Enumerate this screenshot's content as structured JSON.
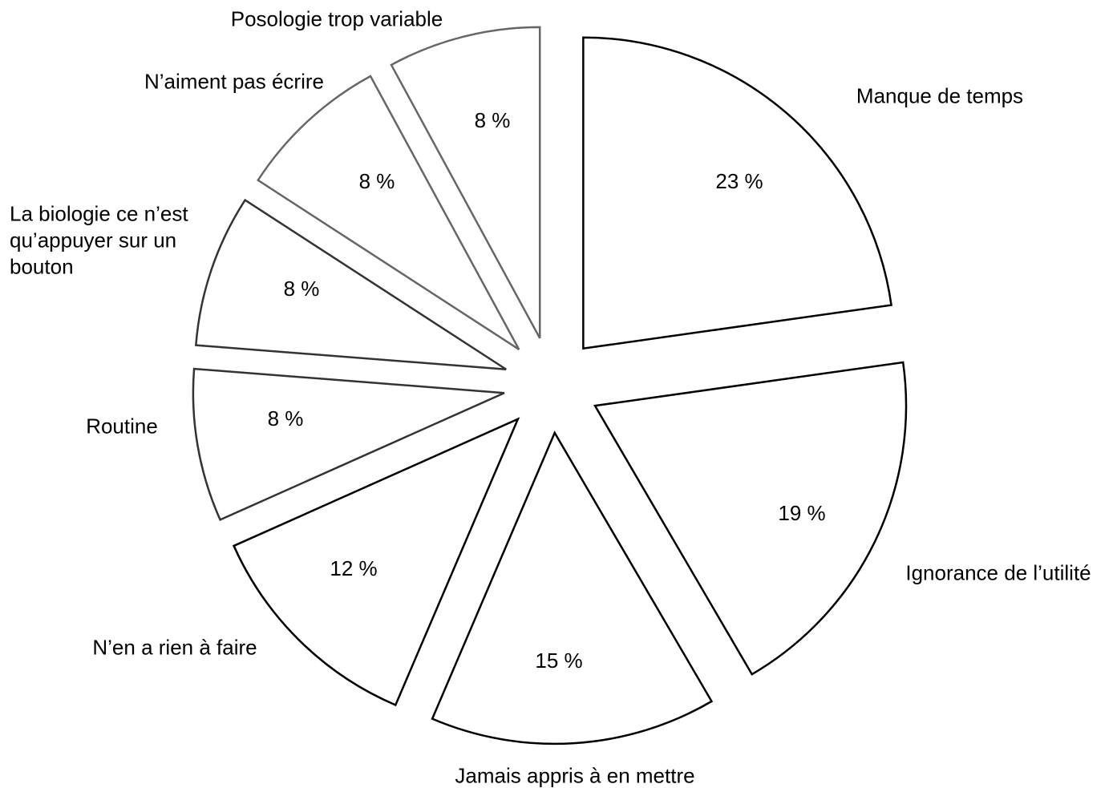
{
  "chart_data": {
    "type": "pie",
    "categories": [
      "Manque de temps",
      "Ignorance de l’utilité",
      "Jamais appris à en mettre",
      "N’en a rien à faire",
      "Routine",
      "La biologie ce n’est qu’appuyer sur un bouton",
      "N’aiment pas écrire",
      "Posologie trop variable"
    ],
    "values": [
      23,
      19,
      15,
      12,
      8,
      8,
      8,
      8
    ],
    "value_labels": [
      "23 %",
      "19 %",
      "15 %",
      "12 %",
      "8 %",
      "8 %",
      "8 %",
      "8 %"
    ],
    "colors": [
      "#000000",
      "#000000",
      "#000000",
      "#000000",
      "#333333",
      "#333333",
      "#666666",
      "#666666"
    ],
    "fill": "#ffffff"
  }
}
